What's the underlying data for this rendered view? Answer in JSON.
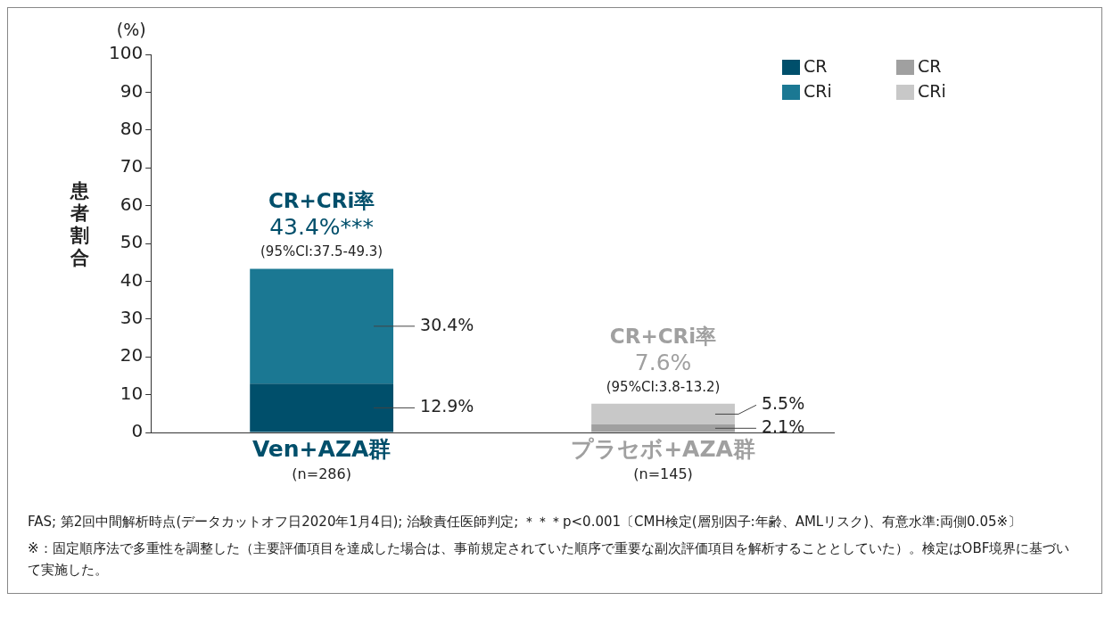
{
  "chart_data": {
    "type": "bar",
    "stacked": true,
    "categories": [
      "Ven+AZA群\n(n=286)",
      "プラセボ+AZA群\n(n=145)"
    ],
    "ylabel": "患者割合",
    "ylim": [
      0,
      100
    ],
    "yticks": [
      0,
      10,
      20,
      30,
      40,
      50,
      60,
      70,
      80,
      90,
      100
    ],
    "grid": false,
    "legend": "top right",
    "series": [
      {
        "name": "CR",
        "color": "#004f6b",
        "values": [
          12.9,
          null
        ],
        "value_labels": [
          "12.9%",
          null
        ]
      },
      {
        "name": "CRi",
        "color": "#1b7893",
        "values": [
          30.4,
          null
        ],
        "value_labels": [
          "30.4%",
          null
        ]
      },
      {
        "name": "CR",
        "color": "#a0a0a0",
        "values": [
          null,
          2.1
        ],
        "value_labels": [
          null,
          "2.1%"
        ]
      },
      {
        "name": "CRi",
        "color": "#c8c8c8",
        "values": [
          null,
          5.5
        ],
        "value_labels": [
          null,
          "5.5%"
        ]
      }
    ],
    "annotations": [
      "(%)",
      {
        "text": "CR+CRi率",
        "x": "Ven+AZA群\n(n=286)",
        "y": 43.4
      },
      {
        "text": "43.4%***",
        "x": "Ven+AZA群\n(n=286)",
        "y": 43.4
      },
      {
        "text": "(95%CI:37.5-49.3)",
        "x": "Ven+AZA群\n(n=286)",
        "y": 43.4
      },
      {
        "text": "CR+CRi率",
        "x": "プラセボ+AZA群\n(n=145)",
        "y": 7.6
      },
      {
        "text": "7.6%",
        "x": "プラセボ+AZA群\n(n=145)",
        "y": 7.6
      },
      {
        "text": "(95%CI:3.8-13.2)",
        "x": "プラセボ+AZA群\n(n=145)",
        "y": 7.6
      },
      "FAS; 第2回中間解析時点(データカットオフ日2020年1月4日); 治験責任医師判定; ＊＊＊p<0.001〔CMH検定(層別因子:年齢、AMLリスク)、有意水準:両側0.05※〕",
      "※：固定順序法で多重性を調整した（主要評価項目を達成した場合は、事前規定されていた順序で重要な副次評価項目を解析することとしていた）。検定はOBF境界に基づいて実施した。"
    ]
  }
}
